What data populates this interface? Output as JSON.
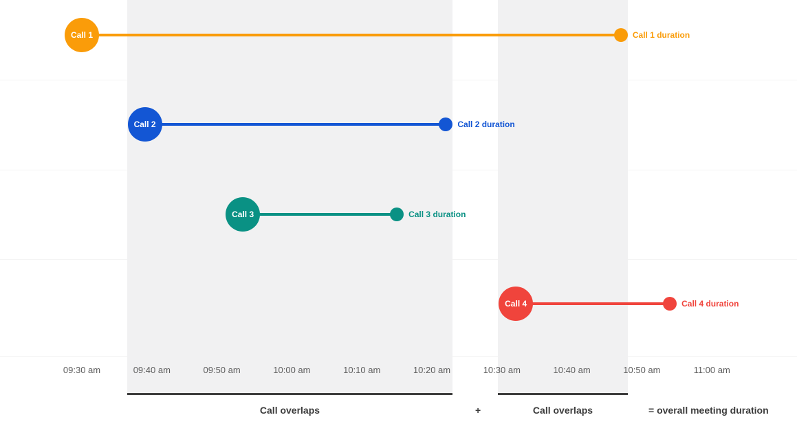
{
  "chart_data": {
    "type": "bar",
    "subtype": "timeline-gantt",
    "title": "",
    "xlabel": "",
    "ylabel": "",
    "x_range": [
      "09:30 am",
      "11:00 am"
    ],
    "x_ticks": [
      "09:30 am",
      "09:40 am",
      "09:50 am",
      "10:00 am",
      "10:10 am",
      "10:20 am",
      "10:30 am",
      "10:40 am",
      "10:50 am",
      "11:00 am"
    ],
    "grid": true,
    "series": [
      {
        "name": "Call 1",
        "start": "09:30 am",
        "end": "10:47 am",
        "end_label": "Call 1 duration",
        "color": "#FA9C09"
      },
      {
        "name": "Call 2",
        "start": "09:39 am",
        "end": "10:22 am",
        "end_label": "Call 2 duration",
        "color": "#1356D4"
      },
      {
        "name": "Call 3",
        "start": "09:53 am",
        "end": "10:15 am",
        "end_label": "Call 3 duration",
        "color": "#0A9184"
      },
      {
        "name": "Call 4",
        "start": "10:32 am",
        "end": "10:54 am",
        "end_label": "Call 4 duration",
        "color": "#F0443C"
      }
    ],
    "overlap_regions": [
      {
        "label": "Call overlaps",
        "start": "09:39 am",
        "end": "10:22 am"
      },
      {
        "label": "Call overlaps",
        "start": "10:32 am",
        "end": "10:47 am"
      }
    ],
    "annotations": {
      "plus": "+",
      "equals": "= overall meeting duration"
    },
    "region_color": "#F1F1F2",
    "axis_text_color": "#5E5E5E",
    "caption_color": "#3C3C3C",
    "underline_bar_color": "#3D3D3D"
  }
}
